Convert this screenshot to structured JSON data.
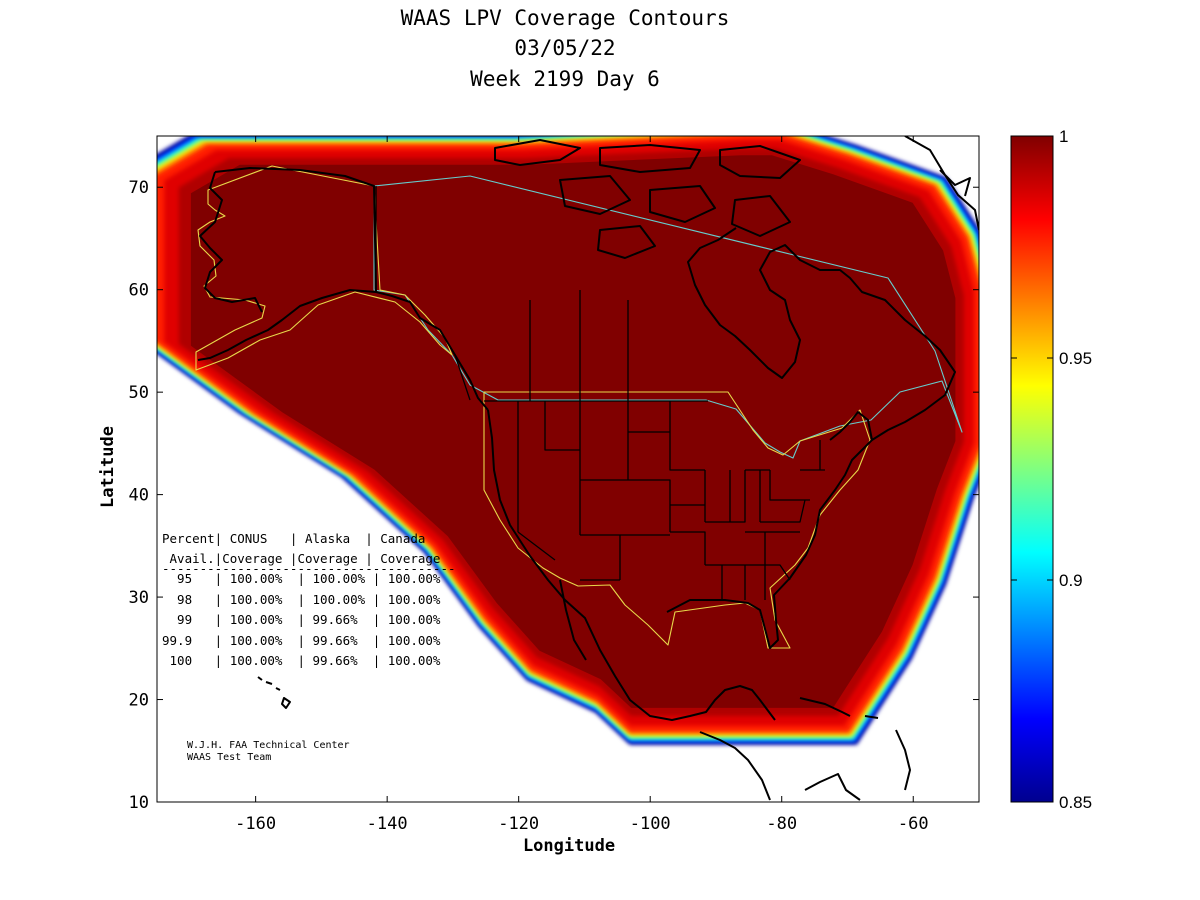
{
  "title": {
    "line1": "WAAS LPV Coverage Contours",
    "line2": "03/05/22",
    "line3": "Week 2199 Day 6"
  },
  "axes": {
    "xlabel": "Longitude",
    "ylabel": "Latitude",
    "xlim": [
      -175,
      -50
    ],
    "ylim": [
      10,
      75
    ],
    "xticks": [
      -160,
      -140,
      -120,
      -100,
      -80,
      -60
    ],
    "yticks": [
      10,
      20,
      30,
      40,
      50,
      60,
      70
    ]
  },
  "colorbar": {
    "ticks": [
      "1",
      "0.95",
      "0.9",
      "0.85"
    ],
    "min": 0.85,
    "max": 1,
    "colors": [
      "#00008f",
      "#0000ff",
      "#0080ff",
      "#00ffff",
      "#80ff80",
      "#ffff00",
      "#ff8000",
      "#ff0000",
      "#800000"
    ]
  },
  "table": {
    "header1": "Percent| CONUS   | Alaska  | Canada",
    "header2": " Avail.|Coverage |Coverage | Coverage",
    "divider": "---------------------------------------",
    "rows": [
      "  95   | 100.00%  | 100.00% | 100.00%",
      "  98   | 100.00%  | 100.00% | 100.00%",
      "  99   | 100.00%  | 99.66%  | 100.00%",
      "99.9   | 100.00%  | 99.66%  | 100.00%",
      " 100   | 100.00%  | 99.66%  | 100.00%"
    ]
  },
  "credit": {
    "line1": "W.J.H. FAA Technical Center",
    "line2": "WAAS Test Team"
  },
  "chart_data": {
    "type": "heatmap",
    "title": "WAAS LPV Coverage Contours",
    "subtitle": "03/05/22 Week 2199 Day 6",
    "xlabel": "Longitude",
    "ylabel": "Latitude",
    "xlim": [
      -175,
      -50
    ],
    "ylim": [
      10,
      75
    ],
    "value_range": [
      0.85,
      1
    ],
    "coverage_region": [
      [
        -167,
        74
      ],
      [
        -150,
        74
      ],
      [
        -120,
        74
      ],
      [
        -85,
        75
      ],
      [
        -80,
        75
      ],
      [
        -70,
        73
      ],
      [
        -57,
        70
      ],
      [
        -52,
        65
      ],
      [
        -50,
        60
      ],
      [
        -50,
        45
      ],
      [
        -53,
        40
      ],
      [
        -57,
        32
      ],
      [
        -62,
        25
      ],
      [
        -67,
        20
      ],
      [
        -70,
        17
      ],
      [
        -103,
        17
      ],
      [
        -108,
        20
      ],
      [
        -118,
        23
      ],
      [
        -125,
        28
      ],
      [
        -133,
        35
      ],
      [
        -145,
        42
      ],
      [
        -160,
        48
      ],
      [
        -175,
        55
      ],
      [
        -175,
        71
      ]
    ],
    "regions": [
      "CONUS",
      "Alaska",
      "Canada"
    ],
    "percent_available": [
      "95",
      "98",
      "99",
      "99.9",
      "100"
    ],
    "conus_coverage": [
      100.0,
      100.0,
      100.0,
      100.0,
      100.0
    ],
    "alaska_coverage": [
      100.0,
      100.0,
      99.66,
      99.66,
      99.66
    ],
    "canada_coverage": [
      100.0,
      100.0,
      100.0,
      100.0,
      100.0
    ]
  }
}
